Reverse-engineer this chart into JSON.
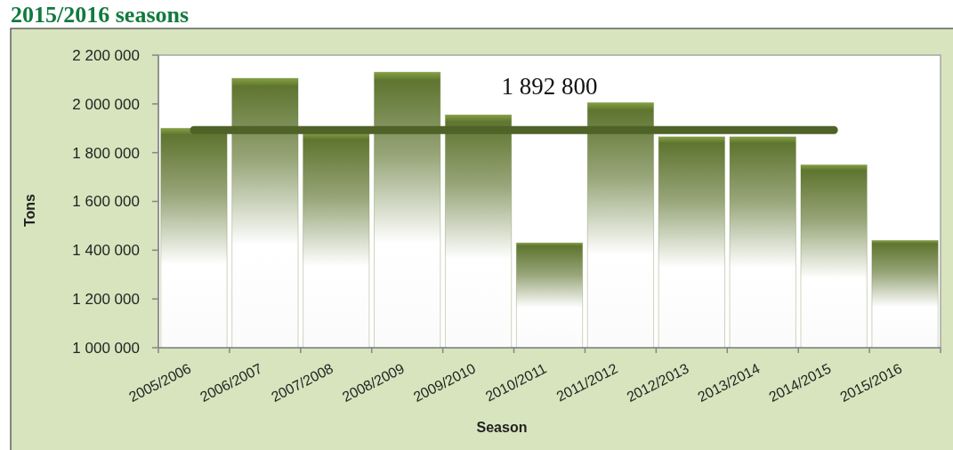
{
  "chart_data": {
    "type": "bar",
    "title": "2015/2016 seasons",
    "xlabel": "Season",
    "ylabel": "Tons",
    "categories": [
      "2005/2006",
      "2006/2007",
      "2007/2008",
      "2008/2009",
      "2009/2010",
      "2010/2011",
      "2011/2012",
      "2012/2013",
      "2013/2014",
      "2014/2015",
      "2015/2016"
    ],
    "series": [
      {
        "color": "#5f7530",
        "values": [
          1900000,
          2105000,
          1880000,
          2130000,
          1955000,
          1430000,
          2005000,
          1865000,
          1865000,
          1750000,
          1440000
        ]
      },
      {
        "type": "line",
        "color": "#4f6228",
        "x": [
          "2005/2006",
          "2014/2015"
        ],
        "values": [
          1892800,
          1892800
        ]
      }
    ],
    "annotations": [
      {
        "text": "1 892 800",
        "x": "2010/2011",
        "y": 1892800
      }
    ],
    "ylim": [
      1000000,
      2200000
    ],
    "yticks": [
      {
        "value": 1000000,
        "label": "1 000 000"
      },
      {
        "value": 1200000,
        "label": "1 200 000"
      },
      {
        "value": 1400000,
        "label": "1 400 000"
      },
      {
        "value": 1600000,
        "label": "1 600 000"
      },
      {
        "value": 1800000,
        "label": "1 800 000"
      },
      {
        "value": 2000000,
        "label": "2 000 000"
      },
      {
        "value": 2200000,
        "label": "2 200 000"
      }
    ]
  }
}
